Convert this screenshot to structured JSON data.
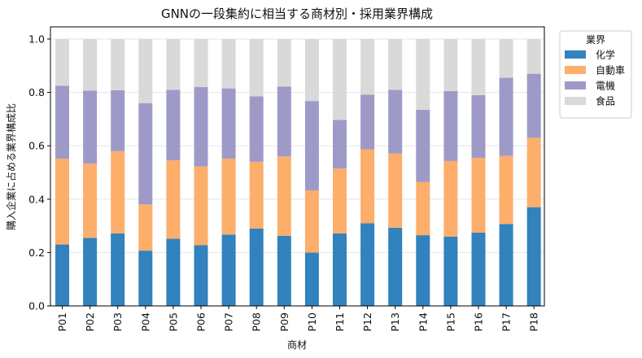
{
  "chart_data": {
    "type": "bar",
    "stacked": true,
    "title": "GNNの一段集約に相当する商材別・採用業界構成",
    "xlabel": "商材",
    "ylabel": "購入企業に占める業界構成比",
    "ylim": [
      0,
      1.0
    ],
    "yticks": [
      "0.0",
      "0.2",
      "0.4",
      "0.6",
      "0.8",
      "1.0"
    ],
    "grid": "y",
    "legend": {
      "title": "業界",
      "placement": "outside-top-right"
    },
    "categories": [
      "P01",
      "P02",
      "P03",
      "P04",
      "P05",
      "P06",
      "P07",
      "P08",
      "P09",
      "P10",
      "P11",
      "P12",
      "P13",
      "P14",
      "P15",
      "P16",
      "P17",
      "P18"
    ],
    "series": [
      {
        "name": "化学",
        "color": "#3182bd",
        "values": [
          0.23,
          0.255,
          0.272,
          0.207,
          0.252,
          0.228,
          0.267,
          0.29,
          0.263,
          0.2,
          0.272,
          0.31,
          0.293,
          0.265,
          0.26,
          0.275,
          0.307,
          0.37
        ]
      },
      {
        "name": "自動車",
        "color": "#fdae6b",
        "values": [
          0.322,
          0.278,
          0.308,
          0.173,
          0.293,
          0.295,
          0.285,
          0.25,
          0.297,
          0.233,
          0.243,
          0.277,
          0.278,
          0.2,
          0.283,
          0.28,
          0.255,
          0.26
        ]
      },
      {
        "name": "電機",
        "color": "#9e9ac8",
        "values": [
          0.273,
          0.274,
          0.228,
          0.38,
          0.265,
          0.297,
          0.263,
          0.245,
          0.262,
          0.335,
          0.182,
          0.205,
          0.239,
          0.27,
          0.262,
          0.235,
          0.293,
          0.24
        ]
      },
      {
        "name": "食品",
        "color": "#d9d9d9",
        "values": [
          0.175,
          0.193,
          0.192,
          0.24,
          0.19,
          0.18,
          0.185,
          0.215,
          0.178,
          0.232,
          0.303,
          0.208,
          0.19,
          0.265,
          0.195,
          0.21,
          0.145,
          0.13
        ]
      }
    ]
  }
}
